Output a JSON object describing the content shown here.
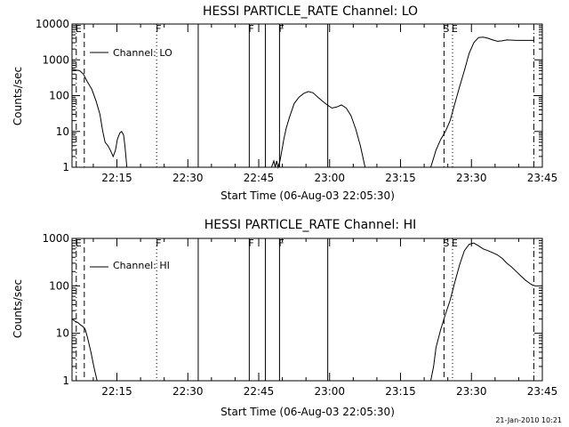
{
  "footer_date": "21-Jan-2010 10:21",
  "chart_data": [
    {
      "type": "line",
      "title": "HESSI PARTICLE_RATE Channel: LO",
      "xlabel": "Start Time (06-Aug-03 22:05:30)",
      "ylabel": "Counts/sec",
      "y_scale": "log",
      "xlim_minutes": [
        0,
        99.5
      ],
      "ylim": [
        1,
        10000
      ],
      "x_ticks": [
        {
          "min": 9.5,
          "label": "22:15"
        },
        {
          "min": 24.5,
          "label": "22:30"
        },
        {
          "min": 39.5,
          "label": "22:45"
        },
        {
          "min": 54.5,
          "label": "23:00"
        },
        {
          "min": 69.5,
          "label": "23:15"
        },
        {
          "min": 84.5,
          "label": "23:30"
        },
        {
          "min": 99.5,
          "label": "23:45"
        }
      ],
      "y_ticks": [
        {
          "value": 1,
          "label": "1"
        },
        {
          "value": 10,
          "label": "10"
        },
        {
          "value": 100,
          "label": "100"
        },
        {
          "value": 1000,
          "label": "1000"
        },
        {
          "value": 10000,
          "label": "10000"
        }
      ],
      "legend": {
        "label": "Channel: LO",
        "position": "top-left"
      },
      "markers": [
        {
          "min": 0.9,
          "style": "dashdot",
          "label": "E"
        },
        {
          "min": 2.6,
          "style": "dash",
          "label": ""
        },
        {
          "min": 17.9,
          "style": "dot",
          "label": "F"
        },
        {
          "min": 26.7,
          "style": "solid",
          "label": ""
        },
        {
          "min": 37.5,
          "style": "solid",
          "label": "F"
        },
        {
          "min": 40.9,
          "style": "solid",
          "label": ""
        },
        {
          "min": 43.9,
          "style": "solid",
          "label": "F"
        },
        {
          "min": 54.1,
          "style": "solid",
          "label": ""
        },
        {
          "min": 78.7,
          "style": "dash",
          "label": "S"
        },
        {
          "min": 80.5,
          "style": "dot",
          "label": "E"
        },
        {
          "min": 97.7,
          "style": "dashdot",
          "label": ""
        }
      ],
      "series": [
        {
          "name": "Channel: LO",
          "segments": [
            [
              [
                0,
                550
              ],
              [
                0.8,
                520
              ],
              [
                1.6,
                500
              ],
              [
                2.4,
                400
              ],
              [
                3.2,
                250
              ],
              [
                4.2,
                150
              ],
              [
                5.1,
                70
              ],
              [
                5.9,
                30
              ],
              [
                6.5,
                10
              ],
              [
                7,
                5
              ],
              [
                7.6,
                4
              ],
              [
                8.1,
                3
              ],
              [
                8.7,
                2
              ],
              [
                9.2,
                3
              ],
              [
                9.6,
                6
              ],
              [
                10.1,
                9
              ],
              [
                10.5,
                10
              ],
              [
                10.9,
                8
              ],
              [
                11.2,
                4
              ],
              [
                11.6,
                1
              ]
            ],
            [
              [
                42.2,
                1
              ],
              [
                42.7,
                1.5
              ],
              [
                43,
                1
              ],
              [
                43.3,
                1.5
              ],
              [
                43.6,
                1
              ],
              [
                44,
                1.5
              ],
              [
                44.4,
                3
              ],
              [
                44.8,
                6
              ],
              [
                45.3,
                12
              ],
              [
                46,
                25
              ],
              [
                47,
                60
              ],
              [
                48,
                90
              ],
              [
                49,
                115
              ],
              [
                50,
                130
              ],
              [
                51,
                120
              ],
              [
                52,
                90
              ],
              [
                53,
                70
              ],
              [
                54,
                55
              ],
              [
                55,
                45
              ],
              [
                56,
                48
              ],
              [
                57,
                55
              ],
              [
                58,
                45
              ],
              [
                59,
                28
              ],
              [
                60,
                12
              ],
              [
                61,
                4
              ],
              [
                61.5,
                2
              ],
              [
                62,
                1
              ]
            ],
            [
              [
                75.9,
                1
              ],
              [
                76.5,
                1.8
              ],
              [
                77,
                3
              ],
              [
                78,
                6
              ],
              [
                79,
                10
              ],
              [
                80,
                20
              ],
              [
                81,
                60
              ],
              [
                82,
                180
              ],
              [
                83,
                500
              ],
              [
                84,
                1500
              ],
              [
                85,
                3000
              ],
              [
                86,
                4200
              ],
              [
                87,
                4300
              ],
              [
                88,
                4000
              ],
              [
                89,
                3600
              ],
              [
                90,
                3300
              ],
              [
                91,
                3400
              ],
              [
                92,
                3600
              ],
              [
                94,
                3500
              ],
              [
                96,
                3500
              ],
              [
                97.7,
                3500
              ]
            ]
          ]
        }
      ]
    },
    {
      "type": "line",
      "title": "HESSI PARTICLE_RATE Channel: HI",
      "xlabel": "Start Time (06-Aug-03 22:05:30)",
      "ylabel": "Counts/sec",
      "y_scale": "log",
      "xlim_minutes": [
        0,
        99.5
      ],
      "ylim": [
        1,
        1000
      ],
      "x_ticks": [
        {
          "min": 9.5,
          "label": "22:15"
        },
        {
          "min": 24.5,
          "label": "22:30"
        },
        {
          "min": 39.5,
          "label": "22:45"
        },
        {
          "min": 54.5,
          "label": "23:00"
        },
        {
          "min": 69.5,
          "label": "23:15"
        },
        {
          "min": 84.5,
          "label": "23:30"
        },
        {
          "min": 99.5,
          "label": "23:45"
        }
      ],
      "y_ticks": [
        {
          "value": 1,
          "label": "1"
        },
        {
          "value": 10,
          "label": "10"
        },
        {
          "value": 100,
          "label": "100"
        },
        {
          "value": 1000,
          "label": "1000"
        }
      ],
      "legend": {
        "label": "Channel: HI",
        "position": "top-left"
      },
      "markers": [
        {
          "min": 0.9,
          "style": "dashdot",
          "label": "E"
        },
        {
          "min": 2.6,
          "style": "dash",
          "label": ""
        },
        {
          "min": 17.9,
          "style": "dot",
          "label": "F"
        },
        {
          "min": 26.7,
          "style": "solid",
          "label": ""
        },
        {
          "min": 37.5,
          "style": "solid",
          "label": "F"
        },
        {
          "min": 40.9,
          "style": "solid",
          "label": ""
        },
        {
          "min": 43.9,
          "style": "solid",
          "label": "F"
        },
        {
          "min": 54.1,
          "style": "solid",
          "label": ""
        },
        {
          "min": 78.7,
          "style": "dash",
          "label": "S"
        },
        {
          "min": 80.5,
          "style": "dot",
          "label": "E"
        },
        {
          "min": 97.7,
          "style": "dashdot",
          "label": ""
        }
      ],
      "series": [
        {
          "name": "Channel: HI",
          "segments": [
            [
              [
                0,
                20
              ],
              [
                0.6,
                18
              ],
              [
                1.2,
                17
              ],
              [
                1.8,
                15
              ],
              [
                2.3,
                14
              ],
              [
                2.8,
                12
              ],
              [
                3.3,
                8
              ],
              [
                4,
                4
              ],
              [
                4.6,
                2
              ],
              [
                5.3,
                1
              ]
            ],
            [
              [
                75.9,
                1
              ],
              [
                76.5,
                2
              ],
              [
                77,
                5
              ],
              [
                78,
                12
              ],
              [
                79,
                25
              ],
              [
                80,
                50
              ],
              [
                81,
                120
              ],
              [
                82,
                280
              ],
              [
                83,
                550
              ],
              [
                84,
                750
              ],
              [
                85,
                800
              ],
              [
                86,
                700
              ],
              [
                87,
                600
              ],
              [
                88,
                550
              ],
              [
                89,
                500
              ],
              [
                90,
                450
              ],
              [
                91,
                380
              ],
              [
                92,
                300
              ],
              [
                93,
                250
              ],
              [
                94,
                200
              ],
              [
                95,
                160
              ],
              [
                96,
                130
              ],
              [
                97,
                110
              ],
              [
                97.7,
                100
              ]
            ]
          ]
        }
      ]
    }
  ]
}
